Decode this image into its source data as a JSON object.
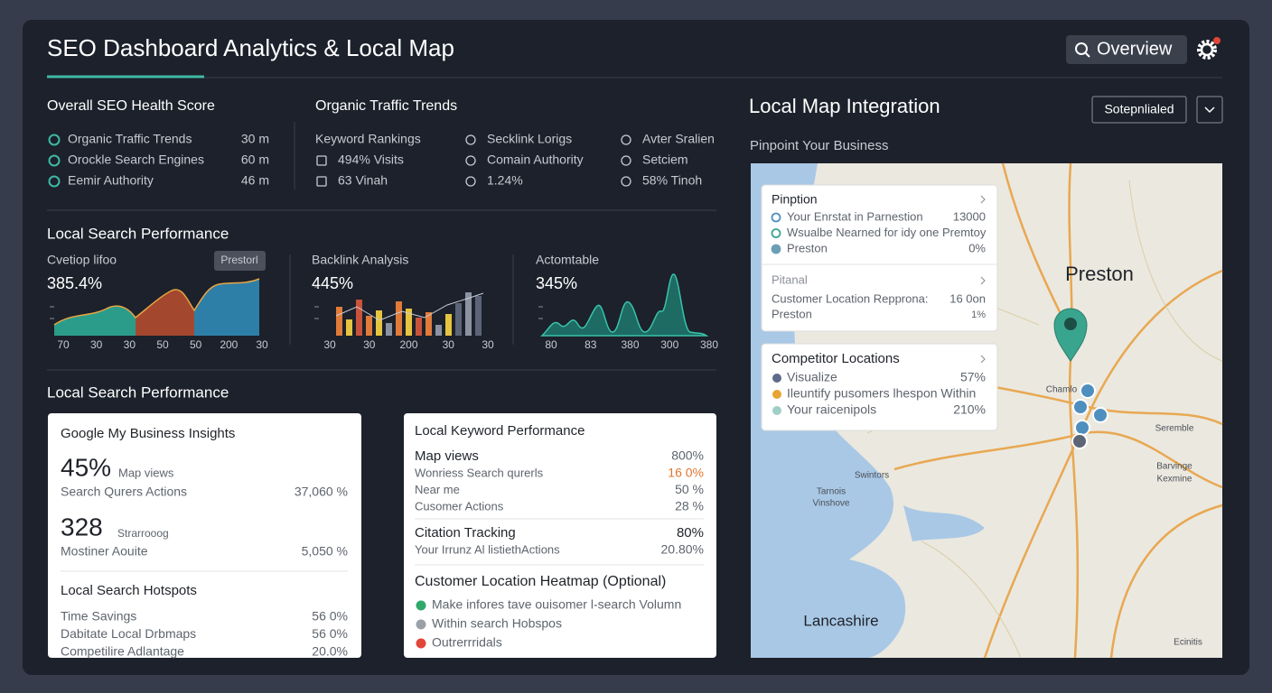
{
  "header": {
    "title": "SEO Dashboard Analytics & Local Map",
    "search_button": "Overview"
  },
  "health": {
    "title": "Overall SEO Health Score",
    "items": [
      {
        "label": "Organic Traffic Trends",
        "value": "30 m"
      },
      {
        "label": "Orockle Search Engines",
        "value": "60 m"
      },
      {
        "label": "Eemir Authority",
        "value": "46 m"
      }
    ]
  },
  "trends": {
    "title": "Organic Traffic Trends",
    "columns": [
      [
        "Keyword Rankings",
        "494% Visits",
        "63 Vinah"
      ],
      [
        "Secklink Lorigs",
        "Comain Authority",
        "1.24%"
      ],
      [
        "Avter Sralien",
        "Setciem",
        "58% Tinoh"
      ]
    ]
  },
  "performance": {
    "title": "Local Search Performance",
    "charts": [
      {
        "label": "Cvetiop lifoo",
        "value": "385.4%",
        "badge": "Prestorl",
        "x_labels": [
          "70",
          "30",
          "30",
          "50",
          "50",
          "200",
          "30"
        ]
      },
      {
        "label": "Backlink Analysis",
        "value": "445%",
        "x_labels": [
          "30",
          "30",
          "200",
          "30",
          "30"
        ]
      },
      {
        "label": "Actomtable",
        "value": "345%",
        "x_labels": [
          "80",
          "83",
          "380",
          "300",
          "380"
        ]
      }
    ]
  },
  "local": {
    "title": "Local Search Performance",
    "gmb": {
      "title": "Google My Business Insights",
      "metric1": {
        "value": "45%",
        "unit": "Map views",
        "row_label": "Search Qurers Actions",
        "row_value": "37,060 %"
      },
      "metric2": {
        "value": "328",
        "unit": "Strarrooog",
        "row_label": "Mostiner Aouite",
        "row_value": "5,050 %"
      },
      "hotspots_title": "Local Search Hotspots",
      "hotspots": [
        {
          "label": "Time Savings",
          "value": "56 0%"
        },
        {
          "label": "Dabitate Local Drbmaps",
          "value": "56 0%"
        },
        {
          "label": "Competilire Adlantage",
          "value": "20.0%"
        }
      ]
    },
    "keywords": {
      "title": "Local Keyword Performance",
      "rows": [
        {
          "label": "Map views",
          "value": "800%"
        },
        {
          "label": "Wonriess Search qurerls",
          "value": "16 0%"
        },
        {
          "label": "Near me",
          "value": "50 %"
        },
        {
          "label": "Cusomer Actions",
          "value": "28 %"
        }
      ],
      "citation": {
        "label": "Citation Tracking",
        "value": "80%",
        "sub_label": "Your Irrunz Al listiethActions",
        "sub_value": "20.80%"
      },
      "heatmap_title": "Customer Location Heatmap (Optional)",
      "heatmap_legend": [
        "Make infores tave ouisomer l-search Volumn",
        "Within search Hobspos",
        "Outrerrridals"
      ]
    }
  },
  "map": {
    "title": "Local Map Integration",
    "select": "Sotepnlialed",
    "subtitle": "Pinpoint Your Business",
    "city": "Preston",
    "region": "Lancashire",
    "places": [
      "Chamlo",
      "Swintors",
      "Tarnois",
      "Vinshove",
      "Kexmine",
      "Seremble",
      "Barvinge",
      "Ecinitis"
    ],
    "popup1": {
      "title": "Pinption",
      "rows": [
        {
          "label": "Your Enrstat in Parnestion",
          "value": "13000"
        },
        {
          "label": "Wsualbe Nearned for idy one Premtoy"
        },
        {
          "label": "Preston",
          "value": "0%"
        }
      ],
      "section": "Pitanal",
      "section_rows": [
        {
          "label": "Customer Location Repprona:",
          "value": "16 0on"
        },
        {
          "label": "Preston",
          "value": "1%"
        }
      ]
    },
    "popup2": {
      "title": "Competitor Locations",
      "rows": [
        {
          "label": "Visualize",
          "value": "57%"
        },
        {
          "label": "Ileuntify pusomers lhespon Within"
        },
        {
          "label": "Your raicenipols",
          "value": "210%"
        }
      ]
    }
  }
}
